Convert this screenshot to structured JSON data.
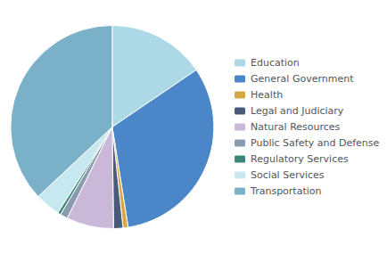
{
  "chart_data": {
    "type": "pie",
    "categories": [
      "Education",
      "General Government",
      "Health",
      "Legal and Judiciary",
      "Natural Resources",
      "Public Safety and Defense",
      "Regulatory Services",
      "Social Services",
      "Transportation"
    ],
    "values": [
      15.5,
      32.0,
      0.8,
      1.5,
      7.5,
      1.2,
      0.5,
      4.0,
      37.0
    ],
    "colors": [
      "#add8e6",
      "#4a86c8",
      "#d4a843",
      "#4a5a7a",
      "#c9b8d8",
      "#8a9bb0",
      "#3a8878",
      "#c8e8f0",
      "#7ab0c8"
    ],
    "legend": "right"
  }
}
